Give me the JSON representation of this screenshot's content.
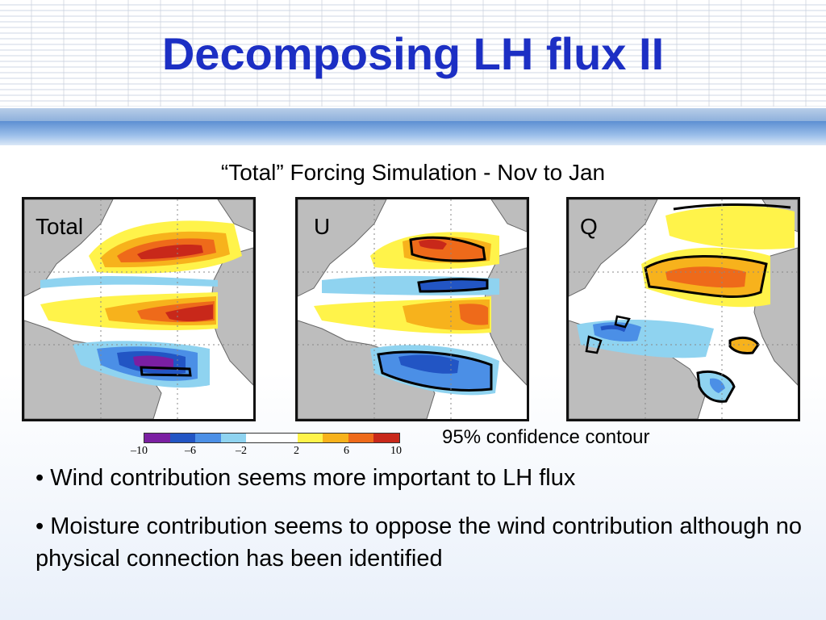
{
  "slide": {
    "title": "Decomposing LH flux II",
    "subtitle": "“Total” Forcing Simulation - Nov to Jan",
    "panels": [
      {
        "label": "Total"
      },
      {
        "label": "U"
      },
      {
        "label": "Q"
      }
    ],
    "colorbar": {
      "ticks": [
        "–10",
        "–6",
        "–2",
        "2",
        "6",
        "10"
      ],
      "colors": [
        "#7b1fa2",
        "#2255c4",
        "#4b8fe6",
        "#8fd3f0",
        "#ffffff",
        "#ffffff",
        "#fff34a",
        "#f7b21c",
        "#ee6a1a",
        "#c8281a"
      ]
    },
    "confidence_note": "95% confidence contour",
    "bullets": [
      "• Wind contribution seems more important to LH flux",
      "• Moisture contribution seems to oppose the wind contribution although no physical connection has been identified"
    ],
    "colors": {
      "title": "#1c2fc4",
      "land": "#bdbdbd"
    }
  }
}
